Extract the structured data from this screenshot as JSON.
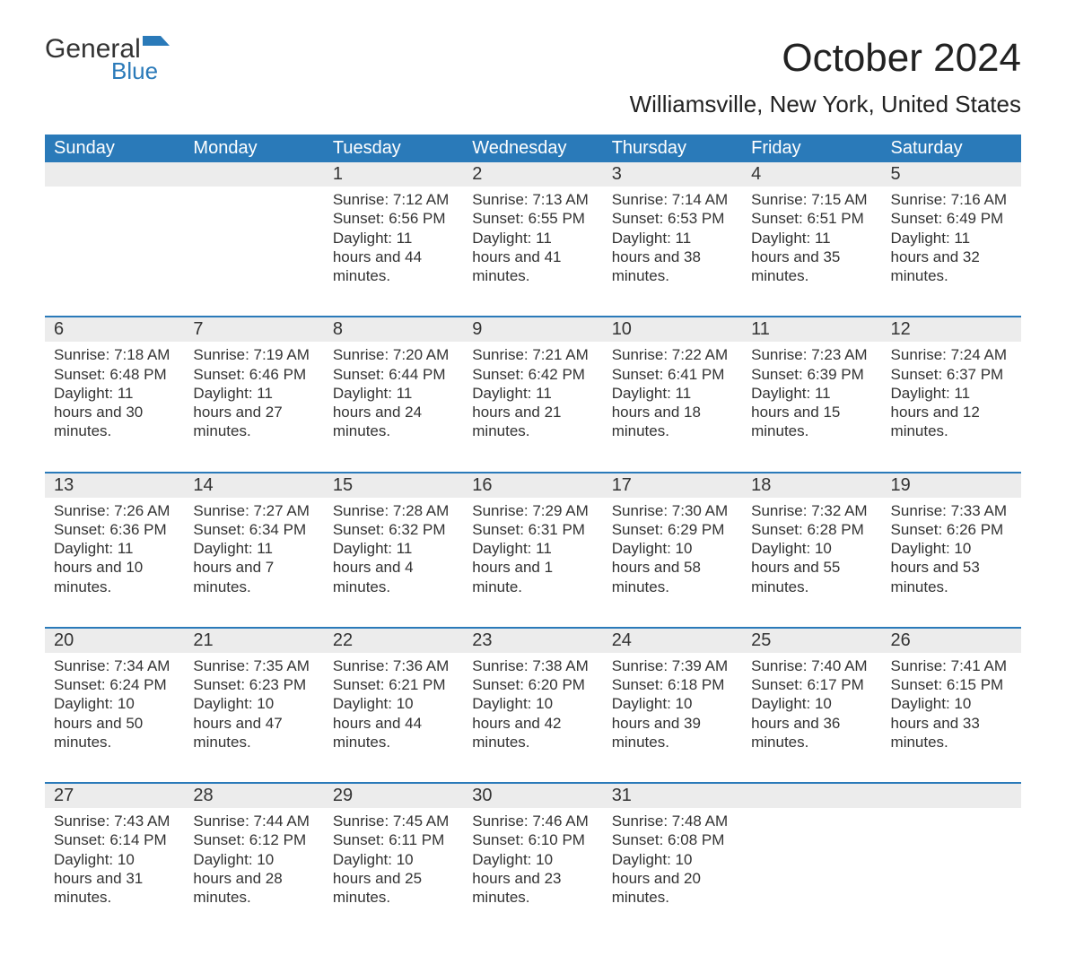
{
  "logo": {
    "word1": "General",
    "word2": "Blue",
    "flag_color": "#2a7ab9"
  },
  "title": "October 2024",
  "subtitle": "Williamsville, New York, United States",
  "colors": {
    "header_bg": "#2a7ab9",
    "header_text": "#ffffff",
    "daynum_bg": "#ececec",
    "row_border": "#2a7ab9",
    "text": "#333333",
    "page_bg": "#ffffff"
  },
  "typography": {
    "title_fontsize": 44,
    "subtitle_fontsize": 26,
    "header_fontsize": 20,
    "daynum_fontsize": 20,
    "body_fontsize": 17
  },
  "days_of_week": [
    "Sunday",
    "Monday",
    "Tuesday",
    "Wednesday",
    "Thursday",
    "Friday",
    "Saturday"
  ],
  "weeks": [
    [
      {
        "blank": true
      },
      {
        "blank": true
      },
      {
        "num": "1",
        "sunrise": "7:12 AM",
        "sunset": "6:56 PM",
        "daylight": "11 hours and 44 minutes."
      },
      {
        "num": "2",
        "sunrise": "7:13 AM",
        "sunset": "6:55 PM",
        "daylight": "11 hours and 41 minutes."
      },
      {
        "num": "3",
        "sunrise": "7:14 AM",
        "sunset": "6:53 PM",
        "daylight": "11 hours and 38 minutes."
      },
      {
        "num": "4",
        "sunrise": "7:15 AM",
        "sunset": "6:51 PM",
        "daylight": "11 hours and 35 minutes."
      },
      {
        "num": "5",
        "sunrise": "7:16 AM",
        "sunset": "6:49 PM",
        "daylight": "11 hours and 32 minutes."
      }
    ],
    [
      {
        "num": "6",
        "sunrise": "7:18 AM",
        "sunset": "6:48 PM",
        "daylight": "11 hours and 30 minutes."
      },
      {
        "num": "7",
        "sunrise": "7:19 AM",
        "sunset": "6:46 PM",
        "daylight": "11 hours and 27 minutes."
      },
      {
        "num": "8",
        "sunrise": "7:20 AM",
        "sunset": "6:44 PM",
        "daylight": "11 hours and 24 minutes."
      },
      {
        "num": "9",
        "sunrise": "7:21 AM",
        "sunset": "6:42 PM",
        "daylight": "11 hours and 21 minutes."
      },
      {
        "num": "10",
        "sunrise": "7:22 AM",
        "sunset": "6:41 PM",
        "daylight": "11 hours and 18 minutes."
      },
      {
        "num": "11",
        "sunrise": "7:23 AM",
        "sunset": "6:39 PM",
        "daylight": "11 hours and 15 minutes."
      },
      {
        "num": "12",
        "sunrise": "7:24 AM",
        "sunset": "6:37 PM",
        "daylight": "11 hours and 12 minutes."
      }
    ],
    [
      {
        "num": "13",
        "sunrise": "7:26 AM",
        "sunset": "6:36 PM",
        "daylight": "11 hours and 10 minutes."
      },
      {
        "num": "14",
        "sunrise": "7:27 AM",
        "sunset": "6:34 PM",
        "daylight": "11 hours and 7 minutes."
      },
      {
        "num": "15",
        "sunrise": "7:28 AM",
        "sunset": "6:32 PM",
        "daylight": "11 hours and 4 minutes."
      },
      {
        "num": "16",
        "sunrise": "7:29 AM",
        "sunset": "6:31 PM",
        "daylight": "11 hours and 1 minute."
      },
      {
        "num": "17",
        "sunrise": "7:30 AM",
        "sunset": "6:29 PM",
        "daylight": "10 hours and 58 minutes."
      },
      {
        "num": "18",
        "sunrise": "7:32 AM",
        "sunset": "6:28 PM",
        "daylight": "10 hours and 55 minutes."
      },
      {
        "num": "19",
        "sunrise": "7:33 AM",
        "sunset": "6:26 PM",
        "daylight": "10 hours and 53 minutes."
      }
    ],
    [
      {
        "num": "20",
        "sunrise": "7:34 AM",
        "sunset": "6:24 PM",
        "daylight": "10 hours and 50 minutes."
      },
      {
        "num": "21",
        "sunrise": "7:35 AM",
        "sunset": "6:23 PM",
        "daylight": "10 hours and 47 minutes."
      },
      {
        "num": "22",
        "sunrise": "7:36 AM",
        "sunset": "6:21 PM",
        "daylight": "10 hours and 44 minutes."
      },
      {
        "num": "23",
        "sunrise": "7:38 AM",
        "sunset": "6:20 PM",
        "daylight": "10 hours and 42 minutes."
      },
      {
        "num": "24",
        "sunrise": "7:39 AM",
        "sunset": "6:18 PM",
        "daylight": "10 hours and 39 minutes."
      },
      {
        "num": "25",
        "sunrise": "7:40 AM",
        "sunset": "6:17 PM",
        "daylight": "10 hours and 36 minutes."
      },
      {
        "num": "26",
        "sunrise": "7:41 AM",
        "sunset": "6:15 PM",
        "daylight": "10 hours and 33 minutes."
      }
    ],
    [
      {
        "num": "27",
        "sunrise": "7:43 AM",
        "sunset": "6:14 PM",
        "daylight": "10 hours and 31 minutes."
      },
      {
        "num": "28",
        "sunrise": "7:44 AM",
        "sunset": "6:12 PM",
        "daylight": "10 hours and 28 minutes."
      },
      {
        "num": "29",
        "sunrise": "7:45 AM",
        "sunset": "6:11 PM",
        "daylight": "10 hours and 25 minutes."
      },
      {
        "num": "30",
        "sunrise": "7:46 AM",
        "sunset": "6:10 PM",
        "daylight": "10 hours and 23 minutes."
      },
      {
        "num": "31",
        "sunrise": "7:48 AM",
        "sunset": "6:08 PM",
        "daylight": "10 hours and 20 minutes."
      },
      {
        "blank": true
      },
      {
        "blank": true
      }
    ]
  ],
  "labels": {
    "sunrise_prefix": "Sunrise: ",
    "sunset_prefix": "Sunset: ",
    "daylight_prefix": "Daylight: "
  }
}
